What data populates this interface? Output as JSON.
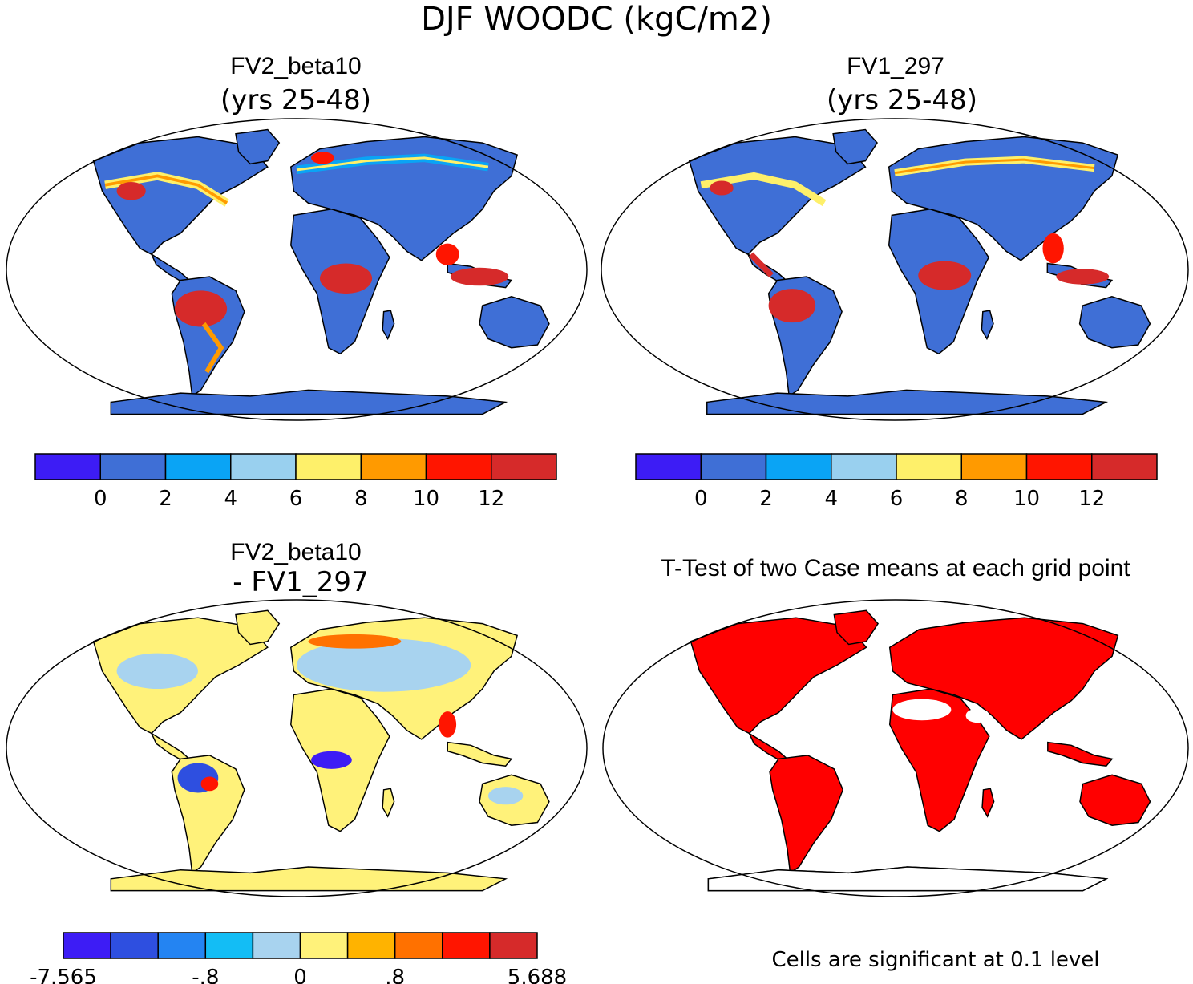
{
  "figure": {
    "title": "DJF WOODC (kgC/m2)",
    "bottom_note": "Cells are significant at 0.1 level"
  },
  "colors": {
    "land_blue": "#3f6fd6",
    "ocean": "#ffffff",
    "sig_red": "#ff0000",
    "outline": "#000000"
  },
  "panels": [
    {
      "id": "fv2",
      "title": "FV2_beta10",
      "subtitle": "(yrs 25-48)",
      "legend": {
        "colors": [
          "#3d1cf5",
          "#3f6fd6",
          "#0aa4f5",
          "#99d0ef",
          "#fef06a",
          "#ff9a00",
          "#ff1500",
          "#d62a2a"
        ],
        "tick_labels": [
          "0",
          "2",
          "4",
          "6",
          "8",
          "10",
          "12"
        ]
      }
    },
    {
      "id": "fv1",
      "title": "FV1_297",
      "subtitle": "(yrs 25-48)",
      "legend": {
        "colors": [
          "#3d1cf5",
          "#3f6fd6",
          "#0aa4f5",
          "#99d0ef",
          "#fef06a",
          "#ff9a00",
          "#ff1500",
          "#d62a2a"
        ],
        "tick_labels": [
          "0",
          "2",
          "4",
          "6",
          "8",
          "10",
          "12"
        ]
      }
    },
    {
      "id": "diff",
      "title": "FV2_beta10",
      "subtitle": "- FV1_297",
      "legend": {
        "colors": [
          "#3d1cf5",
          "#2e4fe0",
          "#2484f2",
          "#13bdf5",
          "#a8d3ef",
          "#fff27a",
          "#ffb300",
          "#ff7100",
          "#ff1500",
          "#d62a2a"
        ],
        "tick_labels": [
          "-7.565",
          "-.8",
          "0",
          ".8",
          "5.688"
        ]
      }
    },
    {
      "id": "ttest",
      "title": "T-Test of two Case means at each grid point"
    }
  ]
}
